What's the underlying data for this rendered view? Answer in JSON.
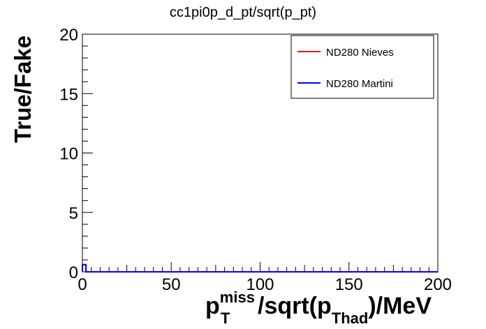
{
  "chart_data": {
    "type": "line",
    "title": "cc1pi0p_d_pt/sqrt(p_pt)",
    "ylabel": "True/Fake",
    "xlabel": {
      "base": "p",
      "sup": "miss",
      "sub": "T",
      "middle": "/sqrt(p",
      "sub2": "Thad",
      "end": ")/MeV"
    },
    "xlim": [
      0,
      200
    ],
    "ylim": [
      0,
      20
    ],
    "x_ticks": [
      "0",
      "50",
      "100",
      "150",
      "200"
    ],
    "y_ticks": [
      "0",
      "5",
      "10",
      "15",
      "20"
    ],
    "x_tick_values": [
      0,
      50,
      100,
      150,
      200
    ],
    "y_tick_values": [
      0,
      5,
      10,
      15,
      20
    ],
    "grid": false,
    "legend_position": "top-right",
    "series": [
      {
        "name": "ND280 Nieves",
        "color": "#ff0000",
        "x": [
          0,
          2,
          200
        ],
        "y": [
          0.6,
          0,
          0
        ]
      },
      {
        "name": "ND280 Martini",
        "color": "#0000ff",
        "x": [
          0,
          2,
          200
        ],
        "y": [
          0.6,
          0,
          0
        ]
      }
    ]
  }
}
